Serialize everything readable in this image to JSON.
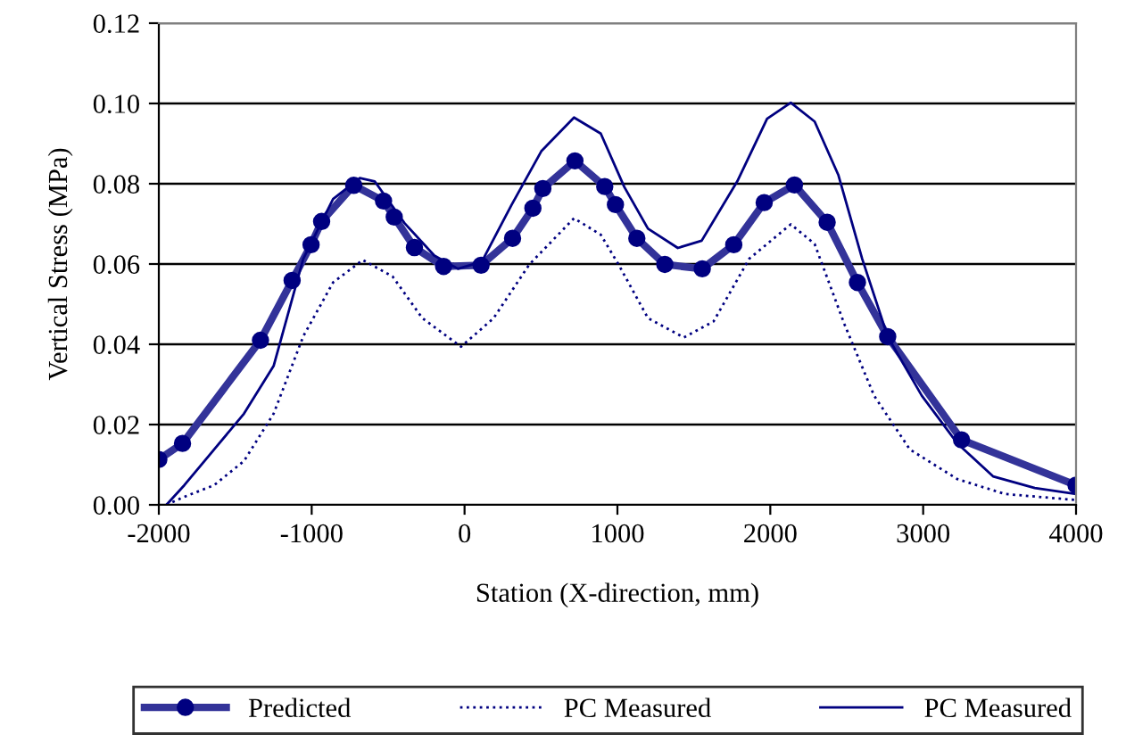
{
  "chart_data": {
    "type": "line",
    "xlabel": "Station (X-direction, mm)",
    "ylabel": "Vertical Stress (MPa)",
    "xlim": [
      -2000,
      4000
    ],
    "xticks": [
      -2000,
      -1000,
      0,
      1000,
      2000,
      3000,
      4000
    ],
    "ylim": [
      0,
      0.12
    ],
    "yticks": [
      {
        "value": 0,
        "label": "0.00"
      },
      {
        "value": 0.02,
        "label": "0.02"
      },
      {
        "value": 0.04,
        "label": "0.04"
      },
      {
        "value": 0.06,
        "label": "0.06"
      },
      {
        "value": 0.08,
        "label": "0.08"
      },
      {
        "value": 0.1,
        "label": "0.10"
      },
      {
        "value": 0.12,
        "label": "0.12"
      }
    ],
    "grid": "y",
    "legend": "bottom",
    "series": [
      {
        "name": "Predicted",
        "color": "#333399",
        "marker": "circle",
        "line_style": "solid",
        "x": [
          -2000,
          -1845,
          -1335,
          -1128,
          -1004,
          -935,
          -725,
          -530,
          -460,
          -328,
          -137,
          108,
          314,
          447,
          512,
          722,
          917,
          987,
          1127,
          1310,
          1555,
          1761,
          1960,
          2158,
          2372,
          2570,
          2768,
          3251,
          4000
        ],
        "values": [
          0.0113,
          0.0153,
          0.041,
          0.0559,
          0.0648,
          0.0706,
          0.0796,
          0.0757,
          0.0717,
          0.0641,
          0.0594,
          0.0597,
          0.0664,
          0.0739,
          0.0788,
          0.0857,
          0.0793,
          0.0748,
          0.0664,
          0.0599,
          0.0588,
          0.0648,
          0.0753,
          0.0797,
          0.0704,
          0.0554,
          0.0419,
          0.0162,
          0.0049
        ]
      },
      {
        "name": "PC Measured",
        "color": "#000080",
        "marker": "none",
        "line_style": "dotted",
        "x": [
          -1950,
          -1833,
          -1638,
          -1443,
          -1249,
          -1055,
          -860,
          -666,
          -471,
          -276,
          -23,
          190,
          424,
          716,
          891,
          1007,
          1200,
          1434,
          1629,
          1862,
          2134,
          2290,
          2485,
          2679,
          2913,
          3224,
          3535,
          4000
        ],
        "values": [
          0,
          0.002,
          0.0049,
          0.0109,
          0.0227,
          0.042,
          0.0554,
          0.061,
          0.0569,
          0.0465,
          0.0394,
          0.0465,
          0.0599,
          0.0714,
          0.0673,
          0.0599,
          0.0465,
          0.0417,
          0.0457,
          0.0613,
          0.0699,
          0.065,
          0.045,
          0.0272,
          0.0138,
          0.0064,
          0.0027,
          0.0012
        ]
      },
      {
        "name": "PC Measured",
        "color": "#000080",
        "marker": "none",
        "line_style": "solid",
        "x": [
          -1950,
          -1833,
          -1638,
          -1443,
          -1249,
          -1055,
          -860,
          -685,
          -588,
          -393,
          -198,
          -43,
          113,
          307,
          502,
          716,
          891,
          1045,
          1200,
          1395,
          1551,
          1784,
          1979,
          2134,
          2290,
          2446,
          2601,
          2768,
          2991,
          3224,
          3457,
          3730,
          4000
        ],
        "values": [
          0,
          0.0049,
          0.0138,
          0.0227,
          0.0346,
          0.0613,
          0.0762,
          0.0814,
          0.0806,
          0.0702,
          0.0621,
          0.0588,
          0.0606,
          0.0747,
          0.0881,
          0.0965,
          0.0925,
          0.0792,
          0.0688,
          0.064,
          0.0658,
          0.0806,
          0.0962,
          0.1002,
          0.0955,
          0.0821,
          0.0613,
          0.0419,
          0.0272,
          0.0153,
          0.0071,
          0.0042,
          0.0027
        ]
      }
    ]
  }
}
